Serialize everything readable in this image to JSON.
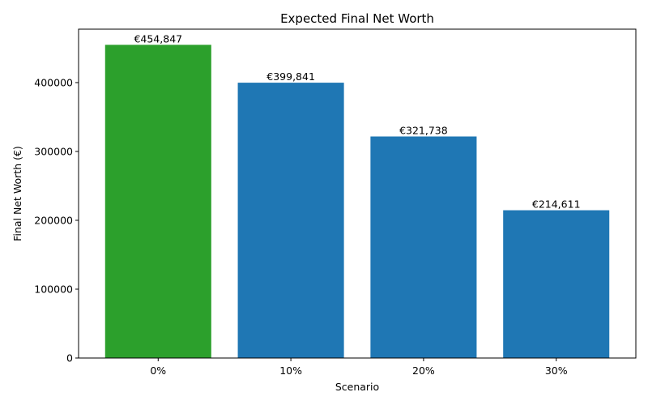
{
  "chart_data": {
    "type": "bar",
    "title": "Expected Final Net Worth",
    "xlabel": "Scenario",
    "ylabel": "Final Net Worth (€)",
    "categories": [
      "0%",
      "10%",
      "20%",
      "30%"
    ],
    "values": [
      454847,
      399841,
      321738,
      214611
    ],
    "value_labels": [
      "€454,847",
      "€399,841",
      "€321,738",
      "€214,611"
    ],
    "bar_colors": [
      "#2ca02c",
      "#1f77b4",
      "#1f77b4",
      "#1f77b4"
    ],
    "ylim": [
      0,
      477589
    ],
    "yticks": [
      0,
      100000,
      200000,
      300000,
      400000
    ],
    "ytick_labels": [
      "0",
      "100000",
      "200000",
      "300000",
      "400000"
    ],
    "grid": false,
    "legend": "none"
  }
}
